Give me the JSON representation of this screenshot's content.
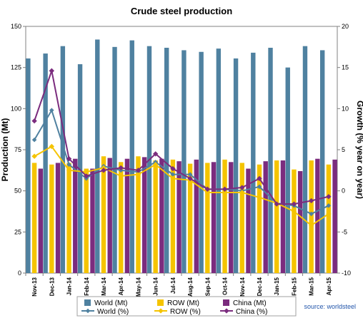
{
  "chart_data": {
    "type": "bar",
    "title": "Crude steel production",
    "ylabel": "Production (Mt)",
    "y2label": "Growth (% year on year)",
    "ylim": [
      0,
      150
    ],
    "y2lim": [
      -10,
      20
    ],
    "yticks": [
      "0",
      "25",
      "50",
      "75",
      "100",
      "125",
      "150"
    ],
    "y2ticks": [
      "-10",
      "-5",
      "0",
      "5",
      "10",
      "15",
      "20"
    ],
    "grid": false,
    "legend_position": "bottom",
    "categories": [
      "Nov-13",
      "Dec-13",
      "Jan-14",
      "Feb-14",
      "Mar-14",
      "Apr-14",
      "May-14",
      "Jun-14",
      "Jul-14",
      "Aug-14",
      "Sep-14",
      "Oct-14",
      "Nov-14",
      "Dec-14",
      "Jan-15",
      "Feb-15",
      "Mar-15",
      "Apr-15"
    ],
    "bar_series": [
      {
        "name": "World (Mt)",
        "color": "#4f81a0",
        "values": [
          130.5,
          133.5,
          138,
          127,
          142,
          137.5,
          141.5,
          138,
          137,
          135.5,
          134.5,
          136.5,
          130.5,
          134,
          137,
          125,
          138,
          135.5
        ]
      },
      {
        "name": "ROW (Mt)",
        "color": "#f5c400",
        "values": [
          67,
          66,
          67,
          63.5,
          71,
          67.5,
          71,
          68.5,
          69,
          66.5,
          67,
          69,
          67,
          66,
          68.5,
          63,
          68.5,
          66
        ]
      },
      {
        "name": "China (Mt)",
        "color": "#7b2c7e",
        "values": [
          63.5,
          67,
          69.5,
          63.5,
          70,
          69.5,
          70.5,
          69.5,
          68,
          69,
          67.5,
          67.5,
          63.5,
          68,
          68.5,
          62,
          69.5,
          69
        ]
      }
    ],
    "line_series": [
      {
        "name": "World (%)",
        "color": "#4f81a0",
        "values": [
          6.2,
          9.8,
          3.2,
          1.5,
          3.0,
          2.5,
          2.3,
          3.5,
          2.0,
          2.0,
          0.2,
          0.2,
          0,
          0.5,
          -1.5,
          -1.8,
          -2.8,
          -1.8
        ]
      },
      {
        "name": "ROW (%)",
        "color": "#f5c400",
        "values": [
          4.2,
          5.4,
          2.5,
          2.3,
          2.8,
          1.8,
          2.0,
          3.2,
          1.5,
          1.3,
          -0.2,
          -0.2,
          -0.2,
          -0.8,
          -1.5,
          -2.5,
          -4.2,
          -2.8
        ]
      },
      {
        "name": "China (%)",
        "color": "#7b2c7e",
        "values": [
          8.5,
          14.6,
          3.9,
          1.8,
          2.5,
          2.8,
          2.5,
          4.5,
          2.7,
          1.5,
          0.2,
          0.2,
          0.4,
          1.5,
          -1.6,
          -1.6,
          -1.2,
          -0.7
        ]
      }
    ],
    "source": "source: worldsteel"
  }
}
